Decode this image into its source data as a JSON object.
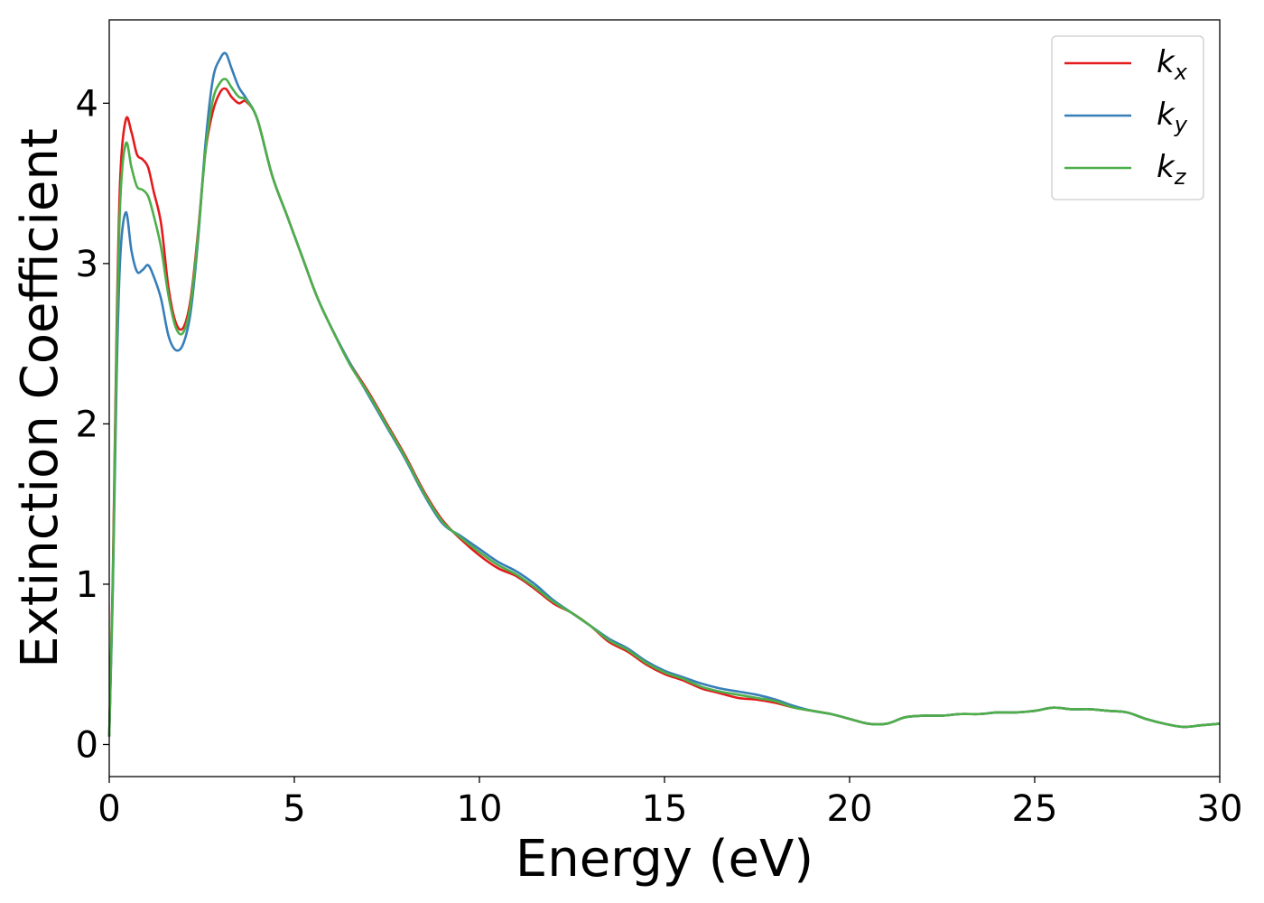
{
  "chart_data": {
    "type": "line",
    "title": "",
    "xlabel": "Energy (eV)",
    "ylabel": "Extinction Coefficient",
    "xlim": [
      0,
      30
    ],
    "ylim": [
      -0.2,
      4.52
    ],
    "xticks": [
      0,
      5,
      10,
      15,
      20,
      25,
      30
    ],
    "yticks": [
      0,
      1,
      2,
      3,
      4
    ],
    "grid": false,
    "legend_position": "top-right",
    "series": [
      {
        "name": "k_x",
        "legend_base": "k",
        "legend_sub": "x",
        "color": "#e41a1c",
        "x": [
          0,
          0.1,
          0.2,
          0.3,
          0.45,
          0.6,
          0.75,
          0.9,
          1.05,
          1.2,
          1.4,
          1.6,
          1.8,
          2.0,
          2.2,
          2.4,
          2.6,
          2.8,
          3.0,
          3.15,
          3.3,
          3.5,
          3.7,
          4.0,
          4.4,
          4.8,
          5.2,
          5.6,
          6.0,
          6.5,
          7.0,
          7.5,
          8.0,
          8.5,
          9.0,
          9.5,
          10.0,
          10.5,
          11.0,
          11.5,
          12.0,
          12.5,
          13.0,
          13.5,
          14.0,
          14.5,
          15.0,
          15.5,
          16.0,
          16.5,
          17.0,
          17.5,
          18.0,
          18.5,
          19.0,
          19.5,
          20.0,
          20.5,
          21.0,
          21.5,
          22.0,
          22.5,
          23.0,
          23.5,
          24.0,
          24.5,
          25.0,
          25.5,
          26.0,
          26.5,
          27.0,
          27.5,
          28.0,
          28.5,
          29.0,
          29.5,
          30.0
        ],
        "y": [
          0.05,
          1.1,
          2.6,
          3.55,
          3.9,
          3.82,
          3.68,
          3.65,
          3.6,
          3.45,
          3.25,
          2.85,
          2.63,
          2.6,
          2.78,
          3.2,
          3.7,
          3.95,
          4.07,
          4.09,
          4.04,
          4.0,
          4.01,
          3.9,
          3.55,
          3.3,
          3.05,
          2.8,
          2.6,
          2.38,
          2.2,
          2.0,
          1.8,
          1.58,
          1.4,
          1.28,
          1.18,
          1.1,
          1.05,
          0.97,
          0.88,
          0.82,
          0.74,
          0.64,
          0.58,
          0.5,
          0.44,
          0.4,
          0.35,
          0.32,
          0.29,
          0.28,
          0.26,
          0.23,
          0.21,
          0.19,
          0.16,
          0.13,
          0.13,
          0.17,
          0.18,
          0.18,
          0.19,
          0.19,
          0.2,
          0.2,
          0.21,
          0.23,
          0.22,
          0.22,
          0.21,
          0.2,
          0.16,
          0.13,
          0.11,
          0.12,
          0.13
        ]
      },
      {
        "name": "k_y",
        "legend_base": "k",
        "legend_sub": "y",
        "color": "#377eb8",
        "x": [
          0,
          0.1,
          0.2,
          0.3,
          0.45,
          0.6,
          0.75,
          0.9,
          1.05,
          1.2,
          1.4,
          1.6,
          1.8,
          2.0,
          2.2,
          2.4,
          2.6,
          2.8,
          3.0,
          3.15,
          3.3,
          3.5,
          3.7,
          4.0,
          4.4,
          4.8,
          5.2,
          5.6,
          6.0,
          6.5,
          7.0,
          7.5,
          8.0,
          8.5,
          9.0,
          9.5,
          10.0,
          10.5,
          11.0,
          11.5,
          12.0,
          12.5,
          13.0,
          13.5,
          14.0,
          14.5,
          15.0,
          15.5,
          16.0,
          16.5,
          17.0,
          17.5,
          18.0,
          18.5,
          19.0,
          19.5,
          20.0,
          20.5,
          21.0,
          21.5,
          22.0,
          22.5,
          23.0,
          23.5,
          24.0,
          24.5,
          25.0,
          25.5,
          26.0,
          26.5,
          27.0,
          27.5,
          28.0,
          28.5,
          29.0,
          29.5,
          30.0
        ],
        "y": [
          0.05,
          1.0,
          2.3,
          3.05,
          3.32,
          3.08,
          2.95,
          2.96,
          2.99,
          2.92,
          2.78,
          2.55,
          2.46,
          2.5,
          2.7,
          3.15,
          3.75,
          4.15,
          4.28,
          4.31,
          4.22,
          4.1,
          4.03,
          3.9,
          3.55,
          3.3,
          3.05,
          2.8,
          2.6,
          2.38,
          2.18,
          1.98,
          1.78,
          1.56,
          1.38,
          1.3,
          1.22,
          1.14,
          1.08,
          1.0,
          0.9,
          0.82,
          0.74,
          0.66,
          0.6,
          0.52,
          0.46,
          0.42,
          0.38,
          0.35,
          0.33,
          0.31,
          0.28,
          0.24,
          0.21,
          0.19,
          0.16,
          0.13,
          0.13,
          0.17,
          0.18,
          0.18,
          0.19,
          0.19,
          0.2,
          0.2,
          0.21,
          0.23,
          0.22,
          0.22,
          0.21,
          0.2,
          0.16,
          0.13,
          0.11,
          0.12,
          0.13
        ]
      },
      {
        "name": "k_z",
        "legend_base": "k",
        "legend_sub": "z",
        "color": "#4daf4a",
        "x": [
          0,
          0.1,
          0.2,
          0.3,
          0.45,
          0.6,
          0.75,
          0.9,
          1.05,
          1.2,
          1.4,
          1.6,
          1.8,
          2.0,
          2.2,
          2.4,
          2.6,
          2.8,
          3.0,
          3.15,
          3.3,
          3.5,
          3.7,
          4.0,
          4.4,
          4.8,
          5.2,
          5.6,
          6.0,
          6.5,
          7.0,
          7.5,
          8.0,
          8.5,
          9.0,
          9.5,
          10.0,
          10.5,
          11.0,
          11.5,
          12.0,
          12.5,
          13.0,
          13.5,
          14.0,
          14.5,
          15.0,
          15.5,
          16.0,
          16.5,
          17.0,
          17.5,
          18.0,
          18.5,
          19.0,
          19.5,
          20.0,
          20.5,
          21.0,
          21.5,
          22.0,
          22.5,
          23.0,
          23.5,
          24.0,
          24.5,
          25.0,
          25.5,
          26.0,
          26.5,
          27.0,
          27.5,
          28.0,
          28.5,
          29.0,
          29.5,
          30.0
        ],
        "y": [
          0.05,
          1.05,
          2.5,
          3.4,
          3.75,
          3.6,
          3.48,
          3.46,
          3.42,
          3.3,
          3.1,
          2.8,
          2.6,
          2.57,
          2.75,
          3.18,
          3.7,
          4.02,
          4.13,
          4.15,
          4.1,
          4.04,
          4.02,
          3.9,
          3.55,
          3.3,
          3.05,
          2.8,
          2.6,
          2.37,
          2.19,
          1.99,
          1.79,
          1.57,
          1.39,
          1.29,
          1.2,
          1.12,
          1.06,
          0.98,
          0.89,
          0.82,
          0.74,
          0.65,
          0.59,
          0.51,
          0.45,
          0.41,
          0.36,
          0.33,
          0.31,
          0.29,
          0.27,
          0.23,
          0.21,
          0.19,
          0.16,
          0.13,
          0.13,
          0.17,
          0.18,
          0.18,
          0.19,
          0.19,
          0.2,
          0.2,
          0.21,
          0.23,
          0.22,
          0.22,
          0.21,
          0.2,
          0.16,
          0.13,
          0.11,
          0.12,
          0.13
        ]
      }
    ]
  }
}
